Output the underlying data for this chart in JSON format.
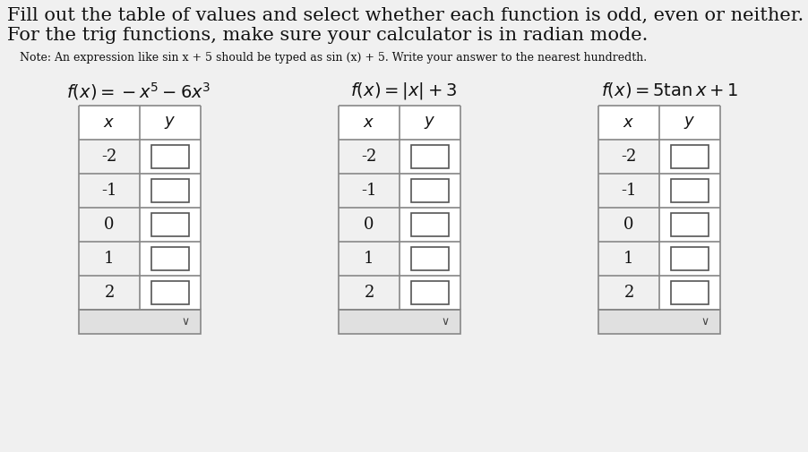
{
  "bg_color": "#f0f0f0",
  "white": "#ffffff",
  "title_line1": "Fill out the table of values and select whether each function is odd, even or neither.",
  "title_line2": "For the trig functions, make sure your calculator is in radian mode.",
  "note_prefix": "Note: An expression like sin ",
  "note_mid": " + 5 should be typed as sin (",
  "note_mid2": ") + 5. Write your answer to the nearest hundredth.",
  "func1_latex": "$f(x) = -x^5 - 6x^3$",
  "func2_latex": "$f(x) = |x| + 3$",
  "func3_latex": "$f(x) = 5\\tan x + 1$",
  "x_values": [
    "-2",
    "-1",
    "0",
    "1",
    "2"
  ],
  "table_border": "#888888",
  "cell_bg": "#ffffff",
  "header_bg": "#ffffff",
  "dropdown_bg": "#e0e0e0",
  "inner_box_border": "#555555",
  "title_fontsize": 15,
  "note_fontsize": 9,
  "func_fontsize": 14,
  "xval_fontsize": 13,
  "header_fontsize": 13
}
